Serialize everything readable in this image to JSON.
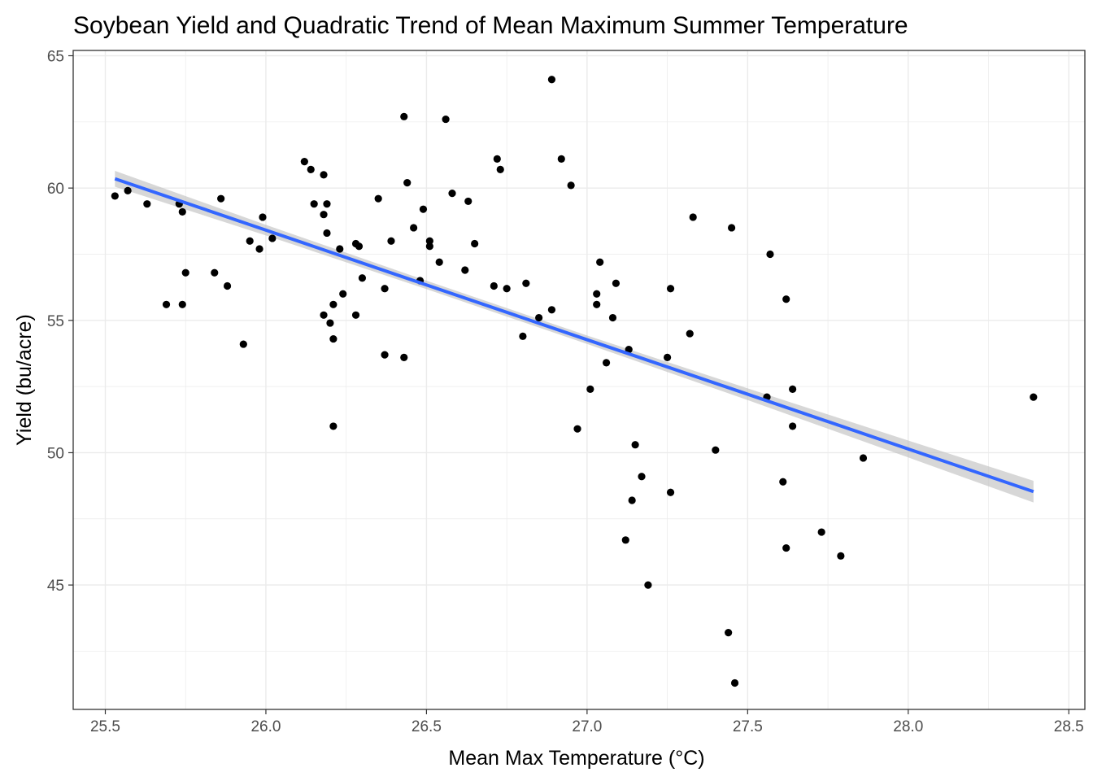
{
  "chart_data": {
    "type": "scatter",
    "title": "Soybean Yield and Quadratic Trend of Mean Maximum Summer Temperature",
    "xlabel": "Mean Max Temperature (°C)",
    "ylabel": "Yield (bu/acre)",
    "xlim": [
      25.4,
      28.55
    ],
    "ylim": [
      40.3,
      65.2
    ],
    "x_ticks": [
      25.5,
      26.0,
      26.5,
      27.0,
      27.5,
      28.0,
      28.5
    ],
    "x_tick_labels": [
      "25.5",
      "26.0",
      "26.5",
      "27.0",
      "27.5",
      "28.0",
      "28.5"
    ],
    "y_ticks": [
      45,
      50,
      55,
      60,
      65
    ],
    "y_tick_labels": [
      "45",
      "50",
      "55",
      "60",
      "65"
    ],
    "grid": true,
    "colors": {
      "points": "#000000",
      "trend": "#3366ff",
      "ribbon": "#bdbdbd",
      "grid": "#ebebeb",
      "panel_border": "#333333"
    },
    "points": [
      [
        25.53,
        59.7
      ],
      [
        25.57,
        59.9
      ],
      [
        25.63,
        59.4
      ],
      [
        25.69,
        55.6
      ],
      [
        25.73,
        59.4
      ],
      [
        25.74,
        59.1
      ],
      [
        25.74,
        55.6
      ],
      [
        25.75,
        56.8
      ],
      [
        25.84,
        56.8
      ],
      [
        25.86,
        59.6
      ],
      [
        25.88,
        56.3
      ],
      [
        25.93,
        54.1
      ],
      [
        25.95,
        58.0
      ],
      [
        25.98,
        57.7
      ],
      [
        25.99,
        58.9
      ],
      [
        26.02,
        58.1
      ],
      [
        26.12,
        61.0
      ],
      [
        26.14,
        60.7
      ],
      [
        26.15,
        59.4
      ],
      [
        26.18,
        55.2
      ],
      [
        26.18,
        59.0
      ],
      [
        26.18,
        60.5
      ],
      [
        26.19,
        59.4
      ],
      [
        26.19,
        58.3
      ],
      [
        26.2,
        54.9
      ],
      [
        26.21,
        55.6
      ],
      [
        26.21,
        54.3
      ],
      [
        26.21,
        51.0
      ],
      [
        26.23,
        57.7
      ],
      [
        26.24,
        56.0
      ],
      [
        26.28,
        57.9
      ],
      [
        26.28,
        55.2
      ],
      [
        26.29,
        57.8
      ],
      [
        26.3,
        56.6
      ],
      [
        26.35,
        59.6
      ],
      [
        26.37,
        56.2
      ],
      [
        26.37,
        53.7
      ],
      [
        26.39,
        58.0
      ],
      [
        26.43,
        53.6
      ],
      [
        26.43,
        62.7
      ],
      [
        26.44,
        60.2
      ],
      [
        26.46,
        58.5
      ],
      [
        26.48,
        56.5
      ],
      [
        26.49,
        59.2
      ],
      [
        26.51,
        58.0
      ],
      [
        26.51,
        57.8
      ],
      [
        26.54,
        57.2
      ],
      [
        26.56,
        62.6
      ],
      [
        26.58,
        59.8
      ],
      [
        26.62,
        56.9
      ],
      [
        26.63,
        59.5
      ],
      [
        26.65,
        57.9
      ],
      [
        26.71,
        56.3
      ],
      [
        26.72,
        61.1
      ],
      [
        26.73,
        60.7
      ],
      [
        26.75,
        56.2
      ],
      [
        26.8,
        54.4
      ],
      [
        26.81,
        56.4
      ],
      [
        26.85,
        55.1
      ],
      [
        26.89,
        64.1
      ],
      [
        26.89,
        55.4
      ],
      [
        26.92,
        61.1
      ],
      [
        26.95,
        60.1
      ],
      [
        26.97,
        50.9
      ],
      [
        27.01,
        52.4
      ],
      [
        27.03,
        56.0
      ],
      [
        27.03,
        55.6
      ],
      [
        27.04,
        57.2
      ],
      [
        27.06,
        53.4
      ],
      [
        27.08,
        55.1
      ],
      [
        27.09,
        56.4
      ],
      [
        27.12,
        46.7
      ],
      [
        27.13,
        53.9
      ],
      [
        27.14,
        48.2
      ],
      [
        27.15,
        50.3
      ],
      [
        27.17,
        49.1
      ],
      [
        27.19,
        45.0
      ],
      [
        27.25,
        53.6
      ],
      [
        27.26,
        48.5
      ],
      [
        27.26,
        56.2
      ],
      [
        27.32,
        54.5
      ],
      [
        27.33,
        58.9
      ],
      [
        27.4,
        50.1
      ],
      [
        27.44,
        43.2
      ],
      [
        27.45,
        58.5
      ],
      [
        27.46,
        41.3
      ],
      [
        27.56,
        52.1
      ],
      [
        27.57,
        57.5
      ],
      [
        27.61,
        48.9
      ],
      [
        27.62,
        55.8
      ],
      [
        27.62,
        46.4
      ],
      [
        27.64,
        52.4
      ],
      [
        27.64,
        51.0
      ],
      [
        27.73,
        47.0
      ],
      [
        27.79,
        46.1
      ],
      [
        27.86,
        49.8
      ],
      [
        28.39,
        52.1
      ]
    ],
    "trend_line": {
      "x": [
        25.53,
        26.0,
        26.5,
        27.0,
        27.5,
        28.0,
        28.39
      ],
      "y": [
        60.35,
        58.41,
        56.34,
        54.27,
        52.21,
        50.14,
        48.53
      ],
      "ci_low": [
        60.05,
        58.21,
        56.18,
        54.11,
        51.99,
        49.82,
        48.12
      ],
      "ci_high": [
        60.65,
        58.61,
        56.5,
        54.43,
        52.43,
        50.46,
        48.94
      ]
    }
  }
}
